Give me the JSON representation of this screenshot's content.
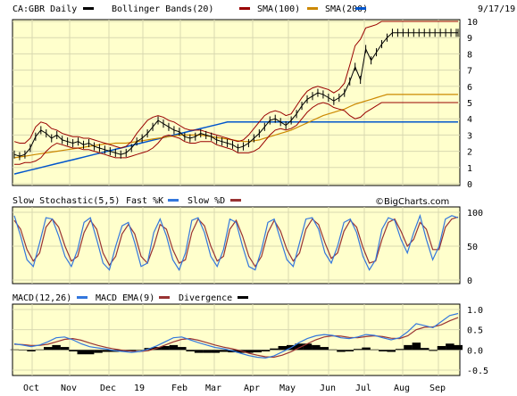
{
  "header": {
    "symbol": "CA:GBR Daily",
    "bollinger": "Bollinger Bands(20)",
    "sma100": "SMA(100)",
    "sma200": "SMA(200)",
    "date": "9/17/19"
  },
  "stoch": {
    "title": "Slow Stochastic(5,5)",
    "fast": "Fast %K",
    "slow": "Slow %D",
    "watermark": "©BigCharts.com"
  },
  "macd": {
    "title": "MACD(12,26)",
    "ema": "MACD EMA(9)",
    "divergence": "Divergence"
  },
  "colors": {
    "panel_bg": "#ffffcc",
    "border": "#000000",
    "grid": "#d8d8b0",
    "price": "#000000",
    "bollinger": "#990000",
    "sma100": "#cc8800",
    "sma200": "#0055cc",
    "fast": "#3377dd",
    "slow": "#993333",
    "divergence": "#000000"
  },
  "chart_data": {
    "type": "line",
    "x_months": [
      "Oct",
      "Nov",
      "Dec",
      "19",
      "Feb",
      "Mar",
      "Apr",
      "May",
      "Jun",
      "Jul",
      "Aug",
      "Sep"
    ],
    "price_axis": {
      "ylim": [
        0,
        10
      ],
      "ticks": [
        0,
        1,
        2,
        3,
        4,
        5,
        6,
        7,
        8,
        9,
        10
      ]
    },
    "stoch_axis": {
      "ylim": [
        0,
        100
      ],
      "ticks": [
        0,
        50,
        100
      ]
    },
    "macd_axis": {
      "ylim": [
        -0.5,
        1.0
      ],
      "ticks": [
        -0.5,
        0.0,
        0.5,
        1.0
      ]
    },
    "price_series": {
      "x": [
        0,
        6,
        12,
        18,
        24,
        30,
        36,
        42,
        48,
        54,
        60,
        66,
        72,
        78,
        84,
        90,
        96,
        102,
        108,
        114,
        120,
        126,
        132,
        138,
        144,
        150,
        156,
        162,
        168,
        174,
        180,
        186,
        192,
        198,
        204,
        210,
        216,
        222,
        228,
        234,
        240,
        246,
        252,
        258,
        264,
        270,
        276,
        282,
        288,
        294,
        300,
        306,
        312,
        318,
        324,
        330,
        336,
        342,
        348,
        354,
        360,
        366,
        372,
        378,
        384,
        390,
        396,
        402,
        408,
        414,
        420,
        426,
        432,
        438,
        444,
        450,
        456,
        462,
        468,
        474,
        480,
        486,
        492,
        498,
        500
      ],
      "close": [
        1.8,
        1.7,
        1.8,
        2.2,
        2.9,
        3.3,
        3.1,
        2.8,
        3.0,
        2.7,
        2.6,
        2.5,
        2.6,
        2.4,
        2.5,
        2.3,
        2.2,
        2.1,
        2.0,
        1.9,
        1.8,
        1.9,
        2.2,
        2.6,
        2.8,
        3.1,
        3.5,
        3.9,
        3.7,
        3.5,
        3.3,
        3.2,
        2.9,
        2.8,
        2.9,
        3.1,
        3.0,
        2.9,
        2.7,
        2.6,
        2.5,
        2.4,
        2.2,
        2.3,
        2.5,
        2.8,
        3.1,
        3.5,
        3.9,
        4.0,
        3.8,
        3.6,
        3.9,
        4.3,
        4.8,
        5.2,
        5.4,
        5.6,
        5.5,
        5.3,
        5.1,
        5.3,
        5.6,
        6.3,
        7.2,
        6.4,
        8.3,
        7.6,
        8.1,
        8.6,
        9.0,
        9.3,
        9.3,
        9.3,
        9.3,
        9.3,
        9.3,
        9.3,
        9.3,
        9.3,
        9.3,
        9.3,
        9.3,
        9.3,
        9.3
      ],
      "bb_upper": [
        2.6,
        2.5,
        2.5,
        2.8,
        3.5,
        3.8,
        3.7,
        3.4,
        3.3,
        3.1,
        3.0,
        2.9,
        2.9,
        2.8,
        2.8,
        2.7,
        2.6,
        2.5,
        2.4,
        2.3,
        2.2,
        2.3,
        2.6,
        3.1,
        3.5,
        3.9,
        4.1,
        4.2,
        4.1,
        3.9,
        3.8,
        3.6,
        3.4,
        3.3,
        3.3,
        3.3,
        3.2,
        3.1,
        3.0,
        2.9,
        2.8,
        2.7,
        2.6,
        2.7,
        3.0,
        3.4,
        3.8,
        4.2,
        4.4,
        4.5,
        4.4,
        4.2,
        4.3,
        4.8,
        5.3,
        5.7,
        5.9,
        6.0,
        5.9,
        5.8,
        5.6,
        5.8,
        6.2,
        7.3,
        8.5,
        8.9,
        9.6,
        9.7,
        9.8,
        10.0,
        10.0,
        10.0,
        10.0,
        10.0,
        10.0,
        10.0,
        10.0,
        10.0,
        10.0,
        10.0,
        10.0,
        10.0,
        10.0,
        10.0,
        10.0
      ],
      "bb_lower": [
        1.2,
        1.2,
        1.3,
        1.3,
        1.4,
        1.6,
        2.0,
        2.3,
        2.5,
        2.4,
        2.3,
        2.2,
        2.2,
        2.1,
        2.1,
        2.0,
        1.9,
        1.8,
        1.7,
        1.6,
        1.6,
        1.6,
        1.7,
        1.8,
        1.9,
        2.0,
        2.2,
        2.5,
        2.9,
        3.0,
        2.9,
        2.8,
        2.6,
        2.5,
        2.5,
        2.6,
        2.6,
        2.6,
        2.4,
        2.3,
        2.2,
        2.1,
        1.9,
        1.9,
        1.9,
        2.0,
        2.2,
        2.6,
        3.0,
        3.3,
        3.4,
        3.3,
        3.4,
        3.6,
        4.0,
        4.4,
        4.7,
        4.9,
        5.0,
        4.9,
        4.7,
        4.6,
        4.5,
        4.2,
        4.0,
        4.1,
        4.4,
        4.6,
        4.8,
        5.0,
        5.0,
        5.0,
        5.0,
        5.0,
        5.0,
        5.0,
        5.0,
        5.0,
        5.0,
        5.0,
        5.0,
        5.0,
        5.0,
        5.0,
        5.0
      ],
      "sma100": [
        1.6,
        1.65,
        1.7,
        1.75,
        1.8,
        1.85,
        1.9,
        1.95,
        2.0,
        2.05,
        2.1,
        2.15,
        2.2,
        2.25,
        2.3,
        2.35,
        2.4,
        2.45,
        2.45,
        2.5,
        2.5,
        2.5,
        2.55,
        2.6,
        2.65,
        2.7,
        2.75,
        2.8,
        2.85,
        2.9,
        2.95,
        3.0,
        3.0,
        3.0,
        3.0,
        3.0,
        2.95,
        2.9,
        2.85,
        2.8,
        2.75,
        2.7,
        2.65,
        2.6,
        2.6,
        2.65,
        2.7,
        2.8,
        2.9,
        3.0,
        3.1,
        3.2,
        3.3,
        3.45,
        3.6,
        3.75,
        3.9,
        4.05,
        4.2,
        4.3,
        4.4,
        4.5,
        4.6,
        4.75,
        4.9,
        5.0,
        5.1,
        5.2,
        5.3,
        5.4,
        5.5,
        5.5,
        5.5,
        5.5,
        5.5,
        5.5,
        5.5,
        5.5,
        5.5,
        5.5,
        5.5,
        5.5,
        5.5,
        5.5,
        5.5
      ],
      "sma200": [
        0.6,
        0.68,
        0.76,
        0.84,
        0.92,
        1.0,
        1.08,
        1.16,
        1.24,
        1.32,
        1.4,
        1.48,
        1.56,
        1.64,
        1.72,
        1.8,
        1.88,
        1.96,
        2.04,
        2.12,
        2.2,
        2.28,
        2.36,
        2.44,
        2.52,
        2.6,
        2.68,
        2.76,
        2.84,
        2.92,
        3.0,
        3.08,
        3.16,
        3.24,
        3.32,
        3.4,
        3.48,
        3.56,
        3.64,
        3.72,
        3.8,
        3.8,
        3.8,
        3.8,
        3.8,
        3.8,
        3.8,
        3.8,
        3.8,
        3.8,
        3.8,
        3.8,
        3.8,
        3.8,
        3.8,
        3.8,
        3.8,
        3.8,
        3.8,
        3.8,
        3.8,
        3.8,
        3.8,
        3.8,
        3.8,
        3.8,
        3.8,
        3.8,
        3.8,
        3.8,
        3.8,
        3.8,
        3.8,
        3.8,
        3.8,
        3.8,
        3.8,
        3.8,
        3.8,
        3.8,
        3.8,
        3.8,
        3.8,
        3.8,
        3.8
      ]
    },
    "stoch_series": {
      "fast_k": [
        95,
        65,
        30,
        20,
        55,
        92,
        90,
        65,
        35,
        20,
        45,
        85,
        92,
        60,
        25,
        15,
        50,
        80,
        85,
        55,
        20,
        25,
        70,
        90,
        65,
        30,
        15,
        40,
        88,
        92,
        70,
        35,
        20,
        45,
        90,
        85,
        50,
        20,
        15,
        45,
        85,
        90,
        60,
        30,
        20,
        55,
        90,
        92,
        75,
        40,
        25,
        50,
        85,
        90,
        70,
        35,
        15,
        30,
        75,
        92,
        88,
        60,
        40,
        70,
        95,
        60,
        30,
        50,
        90,
        95,
        92
      ],
      "slow_d": [
        88,
        75,
        45,
        28,
        40,
        78,
        90,
        78,
        50,
        28,
        35,
        70,
        88,
        75,
        40,
        22,
        35,
        68,
        82,
        68,
        35,
        25,
        50,
        82,
        75,
        45,
        25,
        30,
        70,
        90,
        80,
        50,
        28,
        35,
        75,
        88,
        65,
        35,
        20,
        35,
        70,
        88,
        72,
        45,
        28,
        40,
        75,
        90,
        82,
        55,
        32,
        40,
        72,
        88,
        78,
        48,
        25,
        28,
        60,
        85,
        90,
        72,
        50,
        60,
        85,
        75,
        45,
        45,
        78,
        90,
        93
      ]
    },
    "macd_series": {
      "macd": [
        0.15,
        0.12,
        0.08,
        0.12,
        0.2,
        0.3,
        0.32,
        0.25,
        0.15,
        0.08,
        0.05,
        0.02,
        -0.02,
        -0.04,
        -0.06,
        -0.04,
        0.02,
        0.1,
        0.2,
        0.3,
        0.32,
        0.25,
        0.18,
        0.12,
        0.06,
        0.03,
        -0.02,
        -0.08,
        -0.14,
        -0.18,
        -0.2,
        -0.15,
        -0.05,
        0.05,
        0.18,
        0.28,
        0.35,
        0.38,
        0.36,
        0.3,
        0.28,
        0.32,
        0.38,
        0.36,
        0.3,
        0.25,
        0.3,
        0.45,
        0.65,
        0.6,
        0.55,
        0.7,
        0.85,
        0.9
      ],
      "signal": [
        0.14,
        0.13,
        0.11,
        0.11,
        0.14,
        0.2,
        0.26,
        0.28,
        0.24,
        0.17,
        0.11,
        0.06,
        0.02,
        -0.01,
        -0.03,
        -0.04,
        -0.02,
        0.04,
        0.12,
        0.2,
        0.26,
        0.28,
        0.24,
        0.18,
        0.12,
        0.07,
        0.03,
        -0.02,
        -0.08,
        -0.13,
        -0.17,
        -0.18,
        -0.13,
        -0.05,
        0.05,
        0.15,
        0.25,
        0.32,
        0.35,
        0.34,
        0.31,
        0.3,
        0.33,
        0.35,
        0.33,
        0.29,
        0.28,
        0.35,
        0.5,
        0.56,
        0.57,
        0.62,
        0.72,
        0.8
      ]
    }
  }
}
